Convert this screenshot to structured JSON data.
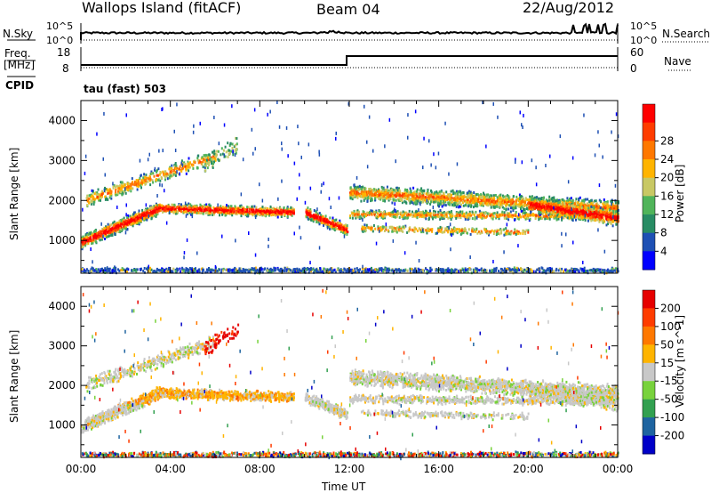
{
  "header": {
    "station": "Wallops Island (fitACF)",
    "beam": "Beam 04",
    "date": "22/Aug/2012"
  },
  "strips": {
    "noise_sky_label": "N.Sky",
    "noise_search_label": "N.Search",
    "noise_ticks_left": [
      "10^5",
      "10^0"
    ],
    "noise_ticks_right": [
      "10^5",
      "10^0"
    ],
    "freq_label_1": "Freq.",
    "freq_label_2": "[MHz]",
    "freq_ticks": [
      "18",
      "8"
    ],
    "nave_label": "Nave",
    "nave_ticks": [
      "60",
      "0"
    ],
    "cpid_label": "CPID",
    "cpid_value": "tau (fast) 503"
  },
  "chart_data": [
    {
      "type": "heatmap",
      "title": "",
      "xlabel": "Time UT",
      "ylabel": "Slant Range [km]",
      "x_tick_labels": [
        "00:00",
        "04:00",
        "08:00",
        "12:00",
        "16:00",
        "20:00",
        "00:00"
      ],
      "x_range_hours": [
        0,
        24
      ],
      "y_tick_labels": [
        "1000",
        "2000",
        "3000",
        "4000"
      ],
      "y_range_km": [
        180,
        4500
      ],
      "colorbar_label": "Power [dB]",
      "colorbar_ticks": [
        "4",
        "8",
        "12",
        "16",
        "20",
        "24",
        "28"
      ],
      "colorbar_colors": [
        "#0000ff",
        "#1e50b4",
        "#288c64",
        "#50b45a",
        "#c8c864",
        "#ffb400",
        "#ff7800",
        "#ff3c00",
        "#ff0000"
      ]
    },
    {
      "type": "heatmap",
      "title": "",
      "xlabel": "Time UT",
      "ylabel": "Slant Range [km]",
      "x_tick_labels": [
        "00:00",
        "04:00",
        "08:00",
        "12:00",
        "16:00",
        "20:00",
        "00:00"
      ],
      "x_range_hours": [
        0,
        24
      ],
      "y_tick_labels": [
        "1000",
        "2000",
        "3000",
        "4000"
      ],
      "y_range_km": [
        180,
        4500
      ],
      "colorbar_label": "Velocity [m s^-1]",
      "colorbar_ticks": [
        "200",
        "100",
        "50",
        "15",
        "-15",
        "-50",
        "-100",
        "-200"
      ],
      "colorbar_colors": [
        "#0000c8",
        "#1e64a0",
        "#32a050",
        "#78d23c",
        "#c8c8c8",
        "#ffb400",
        "#ff7800",
        "#ff3c00",
        "#e60000"
      ]
    }
  ]
}
